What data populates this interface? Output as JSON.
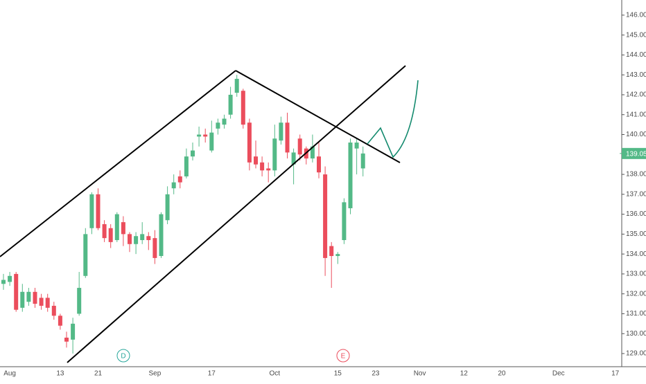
{
  "chart_data": {
    "type": "candlestick",
    "up_color": "#53b987",
    "down_color": "#eb4d5c",
    "categories": [
      null,
      "Aug",
      null,
      null,
      null,
      null,
      null,
      null,
      null,
      "13",
      null,
      null,
      null,
      null,
      null,
      "21",
      null,
      null,
      null,
      null,
      null,
      null,
      null,
      null,
      "Sep",
      null,
      null,
      null,
      null,
      null,
      null,
      null,
      null,
      "17",
      null,
      null,
      null,
      null,
      null,
      null,
      null,
      null,
      null,
      "Oct",
      null,
      null,
      null,
      null,
      null,
      null,
      null,
      null,
      null,
      "15",
      null,
      null,
      null,
      null,
      null,
      "23",
      null,
      null,
      null,
      null,
      null,
      null,
      "Nov",
      null,
      null,
      null,
      null,
      null,
      null,
      "12",
      null,
      null,
      null,
      null,
      null,
      "20",
      null,
      null,
      null,
      null,
      null,
      null,
      null,
      null,
      "Dec",
      null,
      null,
      null,
      null,
      null,
      null,
      null,
      null,
      "17"
    ],
    "open": [
      132.5,
      132.6,
      133.0,
      131.3,
      131.6,
      132.1,
      131.8,
      131.8,
      131.4,
      130.9,
      129.8,
      129.7,
      131.0,
      132.9,
      135.3,
      137.0,
      135.5,
      135.3,
      134.7,
      135.6,
      135.0,
      134.5,
      134.7,
      134.9,
      134.8,
      133.9,
      135.7,
      137.3,
      137.9,
      137.9,
      138.9,
      139.9,
      140.0,
      139.2,
      140.3,
      140.5,
      141.0,
      142.1,
      142.2,
      140.6,
      138.9,
      138.6,
      138.3,
      138.2,
      139.7,
      140.6,
      138.5,
      139.8,
      139.3,
      138.8,
      138.9,
      138.0,
      134.4,
      133.9,
      134.7,
      136.3,
      139.3,
      138.3,
      null,
      null,
      null,
      null,
      null,
      null,
      null,
      null,
      null,
      null,
      null,
      null,
      null,
      null,
      null,
      null,
      null,
      null,
      null,
      null,
      null,
      null,
      null,
      null,
      null,
      null,
      null,
      null,
      null,
      null,
      null,
      null,
      null,
      null,
      null,
      null,
      null,
      null,
      null,
      null
    ],
    "high": [
      133.0,
      133.1,
      133.1,
      132.5,
      132.3,
      132.3,
      132.0,
      132.0,
      131.6,
      131.0,
      130.1,
      130.8,
      133.1,
      135.3,
      137.1,
      137.3,
      135.7,
      135.5,
      136.1,
      135.9,
      135.1,
      135.1,
      135.6,
      135.1,
      135.2,
      136.1,
      137.4,
      138.0,
      138.2,
      139.3,
      139.6,
      140.4,
      140.3,
      140.7,
      140.8,
      141.0,
      142.4,
      143.0,
      142.3,
      140.8,
      139.7,
      138.9,
      138.6,
      140.5,
      140.9,
      141.1,
      139.3,
      140.0,
      139.4,
      140.0,
      139.6,
      138.4,
      134.6,
      134.1,
      136.8,
      139.8,
      139.8,
      139.4,
      null,
      null,
      null,
      null,
      null,
      null,
      null,
      null,
      null,
      null,
      null,
      null,
      null,
      null,
      null,
      null,
      null,
      null,
      null,
      null,
      null,
      null,
      null,
      null,
      null,
      null,
      null,
      null,
      null,
      null,
      null,
      null,
      null,
      null,
      null,
      null,
      null,
      null,
      null,
      null
    ],
    "low": [
      132.2,
      132.4,
      131.1,
      131.1,
      131.4,
      131.3,
      131.2,
      131.1,
      130.7,
      130.2,
      129.3,
      129.0,
      130.9,
      132.8,
      135.0,
      135.2,
      134.6,
      134.3,
      134.6,
      134.4,
      134.1,
      134.0,
      134.5,
      134.2,
      133.5,
      133.8,
      135.5,
      137.0,
      137.3,
      137.8,
      138.7,
      139.4,
      139.6,
      139.1,
      140.0,
      140.3,
      140.8,
      141.9,
      140.3,
      138.2,
      138.3,
      137.9,
      137.6,
      137.9,
      139.5,
      138.8,
      137.5,
      138.7,
      138.5,
      138.6,
      137.8,
      132.9,
      132.3,
      133.5,
      134.5,
      136.0,
      138.0,
      137.9,
      null,
      null,
      null,
      null,
      null,
      null,
      null,
      null,
      null,
      null,
      null,
      null,
      null,
      null,
      null,
      null,
      null,
      null,
      null,
      null,
      null,
      null,
      null,
      null,
      null,
      null,
      null,
      null,
      null,
      null,
      null,
      null,
      null,
      null,
      null,
      null,
      null,
      null,
      null,
      null
    ],
    "close": [
      132.7,
      132.9,
      131.2,
      132.1,
      132.1,
      131.5,
      131.4,
      131.3,
      130.9,
      130.4,
      129.6,
      130.5,
      132.3,
      135.0,
      137.0,
      135.3,
      134.8,
      134.6,
      136.0,
      135.0,
      134.5,
      134.9,
      135.0,
      134.7,
      133.8,
      136.0,
      137.0,
      137.6,
      137.6,
      138.9,
      139.2,
      140.0,
      139.9,
      140.1,
      140.6,
      140.8,
      142.0,
      142.8,
      140.5,
      138.6,
      138.5,
      138.2,
      138.2,
      139.8,
      140.6,
      139.1,
      139.1,
      139.0,
      138.8,
      139.4,
      138.1,
      133.8,
      133.9,
      134.0,
      136.6,
      139.6,
      139.6,
      139.05,
      null,
      null,
      null,
      null,
      null,
      null,
      null,
      null,
      null,
      null,
      null,
      null,
      null,
      null,
      null,
      null,
      null,
      null,
      null,
      null,
      null,
      null,
      null,
      null,
      null,
      null,
      null,
      null,
      null,
      null,
      null,
      null,
      null,
      null,
      null,
      null,
      null,
      null,
      null,
      null
    ],
    "last_price": 139.05,
    "ylim": [
      128.34,
      146.76
    ],
    "yticks": [
      {
        "value": 129,
        "label": "129.00"
      },
      {
        "value": 130,
        "label": "130.00"
      },
      {
        "value": 131,
        "label": "131.00"
      },
      {
        "value": 132,
        "label": "132.00"
      },
      {
        "value": 133,
        "label": "133.00"
      },
      {
        "value": 134,
        "label": "134.00"
      },
      {
        "value": 135,
        "label": "135.00"
      },
      {
        "value": 136,
        "label": "136.00"
      },
      {
        "value": 137,
        "label": "137.00"
      },
      {
        "value": 138,
        "label": "138.00"
      },
      {
        "value": 139,
        "label": "139.00"
      },
      {
        "value": 140,
        "label": "140.00"
      },
      {
        "value": 141,
        "label": "141.00"
      },
      {
        "value": 142,
        "label": "142.00"
      },
      {
        "value": 143,
        "label": "143.00"
      },
      {
        "value": 144,
        "label": "144.00"
      },
      {
        "value": 145,
        "label": "145.00"
      },
      {
        "value": 146,
        "label": "146.00"
      }
    ],
    "grid": false,
    "events": [
      "D",
      "E"
    ]
  }
}
